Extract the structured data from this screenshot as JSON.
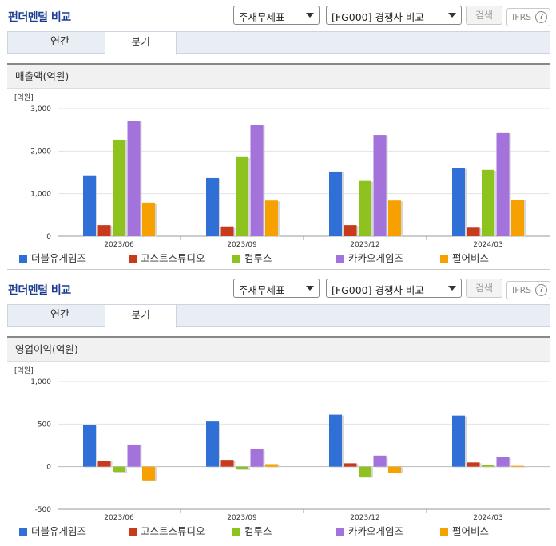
{
  "panels": [
    {
      "title": "펀더멘털 비교",
      "select1": "주재무제표",
      "select2": "[FG000] 경쟁사 비교",
      "search_label": "검색",
      "ifrs_label": "IFRS",
      "ifrs_help": "?",
      "tabs": [
        {
          "label": "연간"
        },
        {
          "label": "분기"
        }
      ],
      "active_tab": 1,
      "metric_title": "매출액(억원)",
      "unit": "[억원]"
    },
    {
      "title": "펀더멘털 비교",
      "select1": "주재무제표",
      "select2": "[FG000] 경쟁사 비교",
      "search_label": "검색",
      "ifrs_label": "IFRS",
      "ifrs_help": "?",
      "tabs": [
        {
          "label": "연간"
        },
        {
          "label": "분기"
        }
      ],
      "active_tab": 1,
      "metric_title": "영업이익(억원)",
      "unit": "[억원]"
    }
  ],
  "chart_data": [
    {
      "type": "bar",
      "title": "매출액(억원)",
      "ylabel": "[억원]",
      "ylim": [
        0,
        3000
      ],
      "yticks": [
        0,
        1000,
        2000,
        3000
      ],
      "ytick_labels": [
        "0",
        "1,000",
        "2,000",
        "3,000"
      ],
      "categories": [
        "2023/06",
        "2023/09",
        "2023/12",
        "2024/03"
      ],
      "series": [
        {
          "name": "더블유게임즈",
          "color": "#2f6fd6",
          "values": [
            1430,
            1370,
            1520,
            1600
          ]
        },
        {
          "name": "고스트스튜디오",
          "color": "#c9391c",
          "values": [
            260,
            230,
            260,
            220
          ]
        },
        {
          "name": "컴투스",
          "color": "#8dc21f",
          "values": [
            2270,
            1860,
            1300,
            1560
          ]
        },
        {
          "name": "카카오게임즈",
          "color": "#a373db",
          "values": [
            2710,
            2620,
            2380,
            2440
          ]
        },
        {
          "name": "펄어비스",
          "color": "#f7a100",
          "values": [
            790,
            840,
            840,
            860
          ]
        }
      ],
      "grid": true,
      "legend": "bottom"
    },
    {
      "type": "bar",
      "title": "영업이익(억원)",
      "ylabel": "[억원]",
      "ylim": [
        -500,
        1000
      ],
      "yticks": [
        -500,
        0,
        500,
        1000
      ],
      "ytick_labels": [
        "-500",
        "0",
        "500",
        "1,000"
      ],
      "categories": [
        "2023/06",
        "2023/09",
        "2023/12",
        "2024/03"
      ],
      "series": [
        {
          "name": "더블유게임즈",
          "color": "#2f6fd6",
          "values": [
            490,
            530,
            610,
            600
          ]
        },
        {
          "name": "고스트스튜디오",
          "color": "#c9391c",
          "values": [
            70,
            80,
            40,
            50
          ]
        },
        {
          "name": "컴투스",
          "color": "#8dc21f",
          "values": [
            -60,
            -30,
            -120,
            20
          ]
        },
        {
          "name": "카카오게임즈",
          "color": "#a373db",
          "values": [
            260,
            210,
            130,
            110
          ]
        },
        {
          "name": "펄어비스",
          "color": "#f7a100",
          "values": [
            -160,
            30,
            -70,
            10
          ]
        }
      ],
      "grid": true,
      "legend": "bottom"
    }
  ]
}
